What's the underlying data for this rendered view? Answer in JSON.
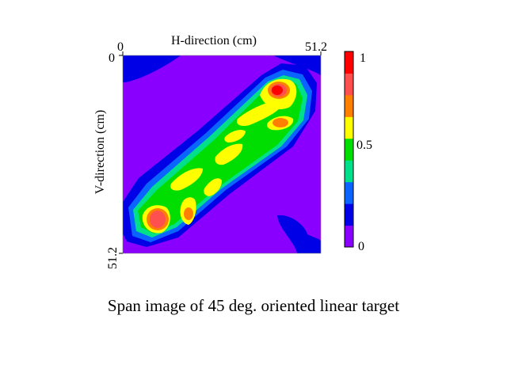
{
  "caption": "Span image of 45 deg. oriented linear target",
  "chart_data": {
    "type": "heatmap",
    "title": "",
    "xlabel": "H-direction   (cm)",
    "ylabel": "V-direction   (cm)",
    "xlim": [
      0,
      51.2
    ],
    "ylim": [
      0,
      51.2
    ],
    "x_tick_labels": [
      "0",
      "51.2"
    ],
    "y_tick_labels": [
      "0",
      "51.2"
    ],
    "colorbar": {
      "range": [
        0,
        1
      ],
      "tick_labels": [
        "1",
        "0.5",
        "0"
      ],
      "levels": [
        "#8a00ff",
        "#0000e6",
        "#0a64ff",
        "#00e08a",
        "#00dd00",
        "#ffff00",
        "#ff8000",
        "#ff5050",
        "#ff0000"
      ]
    },
    "colors": {
      "background_level": "#8a00ff",
      "low_level": "#0000e6"
    },
    "features": [
      {
        "desc": "diagonal band from lower-left to upper-right",
        "peaks": [
          {
            "x": 8.6,
            "y": 42.2,
            "value": 0.95
          },
          {
            "x": 40.5,
            "y": 8.7,
            "value": 1.0
          },
          {
            "x": 40.8,
            "y": 17.1,
            "value": 0.8
          },
          {
            "x": 17.4,
            "y": 41.1,
            "value": 0.75
          }
        ]
      }
    ]
  }
}
